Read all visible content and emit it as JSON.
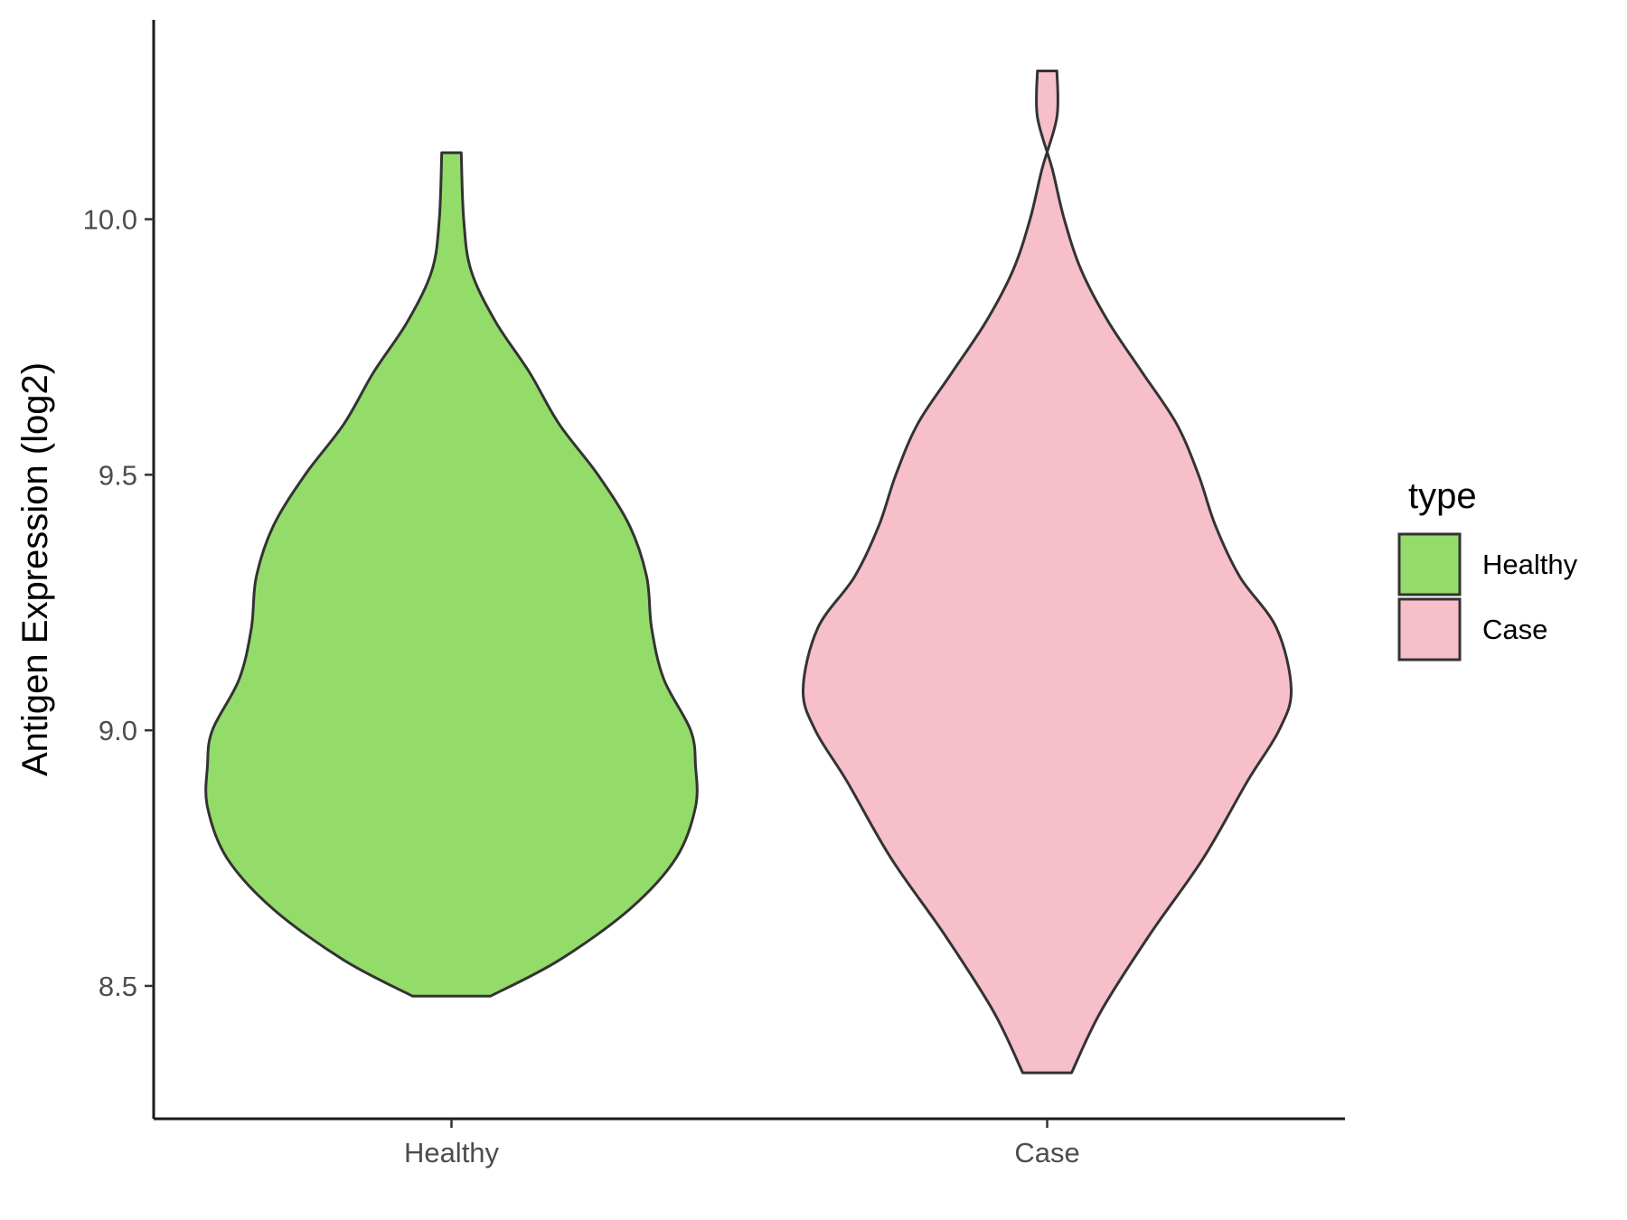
{
  "chart_data": {
    "type": "violin",
    "xlabel": "",
    "ylabel": "Antigen Expression (log2)",
    "ylim": [
      8.24,
      10.39
    ],
    "yticks": [
      "8.5",
      "9.0",
      "9.5",
      "10.0"
    ],
    "categories": [
      "Healthy",
      "Case"
    ],
    "series": [
      {
        "name": "Healthy",
        "color": "#93dc6a",
        "min": 8.48,
        "max": 10.13,
        "profile": [
          [
            8.48,
            0.16
          ],
          [
            8.55,
            0.44
          ],
          [
            8.65,
            0.73
          ],
          [
            8.75,
            0.92
          ],
          [
            8.85,
            1.0
          ],
          [
            8.93,
            1.0
          ],
          [
            9.0,
            0.98
          ],
          [
            9.1,
            0.87
          ],
          [
            9.2,
            0.82
          ],
          [
            9.3,
            0.8
          ],
          [
            9.4,
            0.73
          ],
          [
            9.5,
            0.6
          ],
          [
            9.6,
            0.44
          ],
          [
            9.7,
            0.32
          ],
          [
            9.8,
            0.18
          ],
          [
            9.9,
            0.08
          ],
          [
            10.0,
            0.05
          ],
          [
            10.13,
            0.04
          ]
        ]
      },
      {
        "name": "Case",
        "color": "#f7bfca",
        "min": 8.33,
        "max": 10.29,
        "profile": [
          [
            8.33,
            0.1
          ],
          [
            8.45,
            0.22
          ],
          [
            8.6,
            0.42
          ],
          [
            8.75,
            0.64
          ],
          [
            8.9,
            0.82
          ],
          [
            9.0,
            0.95
          ],
          [
            9.08,
            1.0
          ],
          [
            9.2,
            0.94
          ],
          [
            9.3,
            0.79
          ],
          [
            9.4,
            0.69
          ],
          [
            9.5,
            0.62
          ],
          [
            9.6,
            0.53
          ],
          [
            9.7,
            0.39
          ],
          [
            9.8,
            0.25
          ],
          [
            9.9,
            0.14
          ],
          [
            10.0,
            0.07
          ],
          [
            10.1,
            0.02
          ],
          [
            10.2,
            -0.04
          ],
          [
            10.29,
            -0.04
          ]
        ]
      }
    ],
    "legend": {
      "title": "type",
      "position": "right",
      "entries": [
        "Healthy",
        "Case"
      ]
    }
  }
}
